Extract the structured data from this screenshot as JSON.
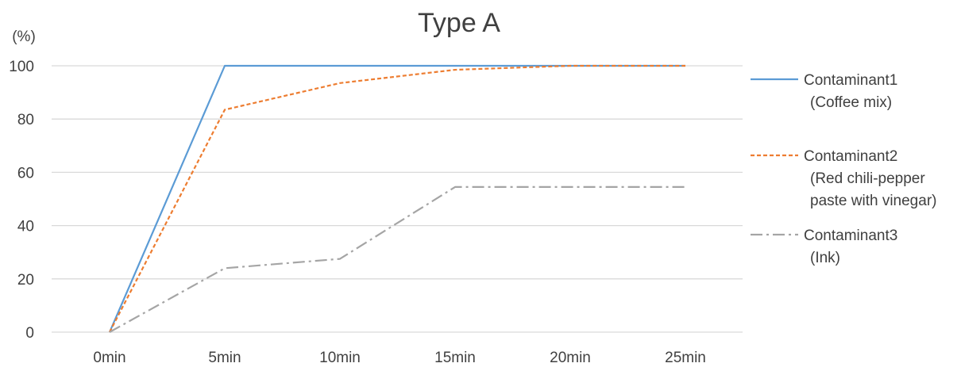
{
  "chart_data": {
    "type": "line",
    "title": "Type A",
    "ylabel": "(%)",
    "xlabel": "",
    "categories": [
      "0min",
      "5min",
      "10min",
      "15min",
      "20min",
      "25min"
    ],
    "ylim": [
      0,
      100
    ],
    "yticks": [
      0,
      20,
      40,
      60,
      80,
      100
    ],
    "grid": true,
    "legend_position": "right",
    "series": [
      {
        "name": "Contaminant1",
        "name_line2": "(Coffee mix)",
        "values": [
          0,
          100,
          100,
          100,
          100,
          100
        ],
        "color": "#5b9bd5",
        "dash": "solid"
      },
      {
        "name": "Contaminant2",
        "name_line2": "(Red chili-pepper",
        "name_line3": "paste with vinegar)",
        "values": [
          0,
          83.5,
          93.5,
          98.5,
          100,
          100
        ],
        "color": "#ed7d31",
        "dash": "dash"
      },
      {
        "name": "Contaminant3",
        "name_line2": "(Ink)",
        "values": [
          0,
          24,
          27.5,
          54.5,
          54.5,
          54.5
        ],
        "color": "#a5a5a5",
        "dash": "dashdot"
      }
    ]
  }
}
